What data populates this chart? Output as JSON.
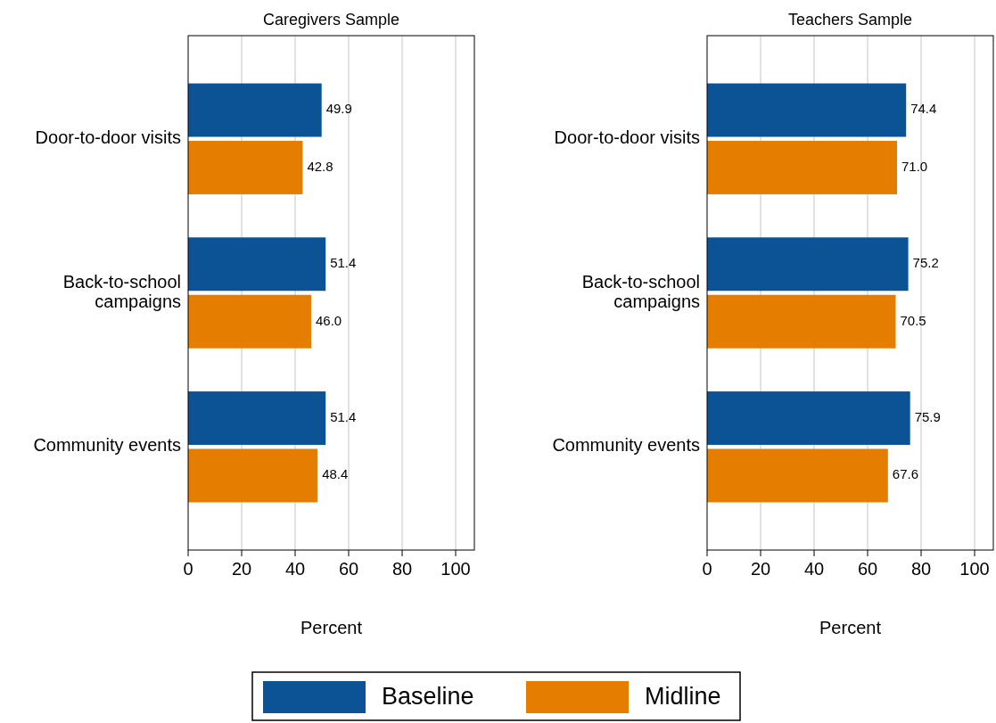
{
  "chart_data": [
    {
      "type": "bar",
      "orientation": "horizontal",
      "title": "Caregivers Sample",
      "xlabel": "Percent",
      "categories": [
        "Door-to-door visits",
        "Back-to-school campaigns",
        "Community events"
      ],
      "series": [
        {
          "name": "Baseline",
          "color": "#0b5394",
          "values": [
            49.9,
            51.4,
            51.4
          ],
          "value_labels": [
            "49.9",
            "51.4",
            "51.4"
          ]
        },
        {
          "name": "Midline",
          "color": "#e57e00",
          "values": [
            42.8,
            46.0,
            48.4
          ],
          "value_labels": [
            "42.8",
            "46.0",
            "48.4"
          ]
        }
      ],
      "xlim": [
        0,
        107
      ],
      "xticks": [
        0,
        20,
        40,
        60,
        80,
        100
      ],
      "grid": "x",
      "legend": "bottom"
    },
    {
      "type": "bar",
      "orientation": "horizontal",
      "title": "Teachers Sample",
      "xlabel": "Percent",
      "categories": [
        "Door-to-door visits",
        "Back-to-school campaigns",
        "Community events"
      ],
      "series": [
        {
          "color": "#0b5394",
          "values": [
            74.4,
            75.2,
            75.9
          ],
          "value_labels": [
            "74.4",
            "75.2",
            "75.9"
          ]
        },
        {
          "color": "#e57e00",
          "values": [
            71.0,
            70.5,
            67.6
          ],
          "value_labels": [
            "71.0",
            "70.5",
            "67.6"
          ]
        }
      ],
      "xlim": [
        0,
        107
      ],
      "xticks": [
        0,
        20,
        40,
        60,
        80,
        100
      ],
      "grid": "x"
    }
  ]
}
